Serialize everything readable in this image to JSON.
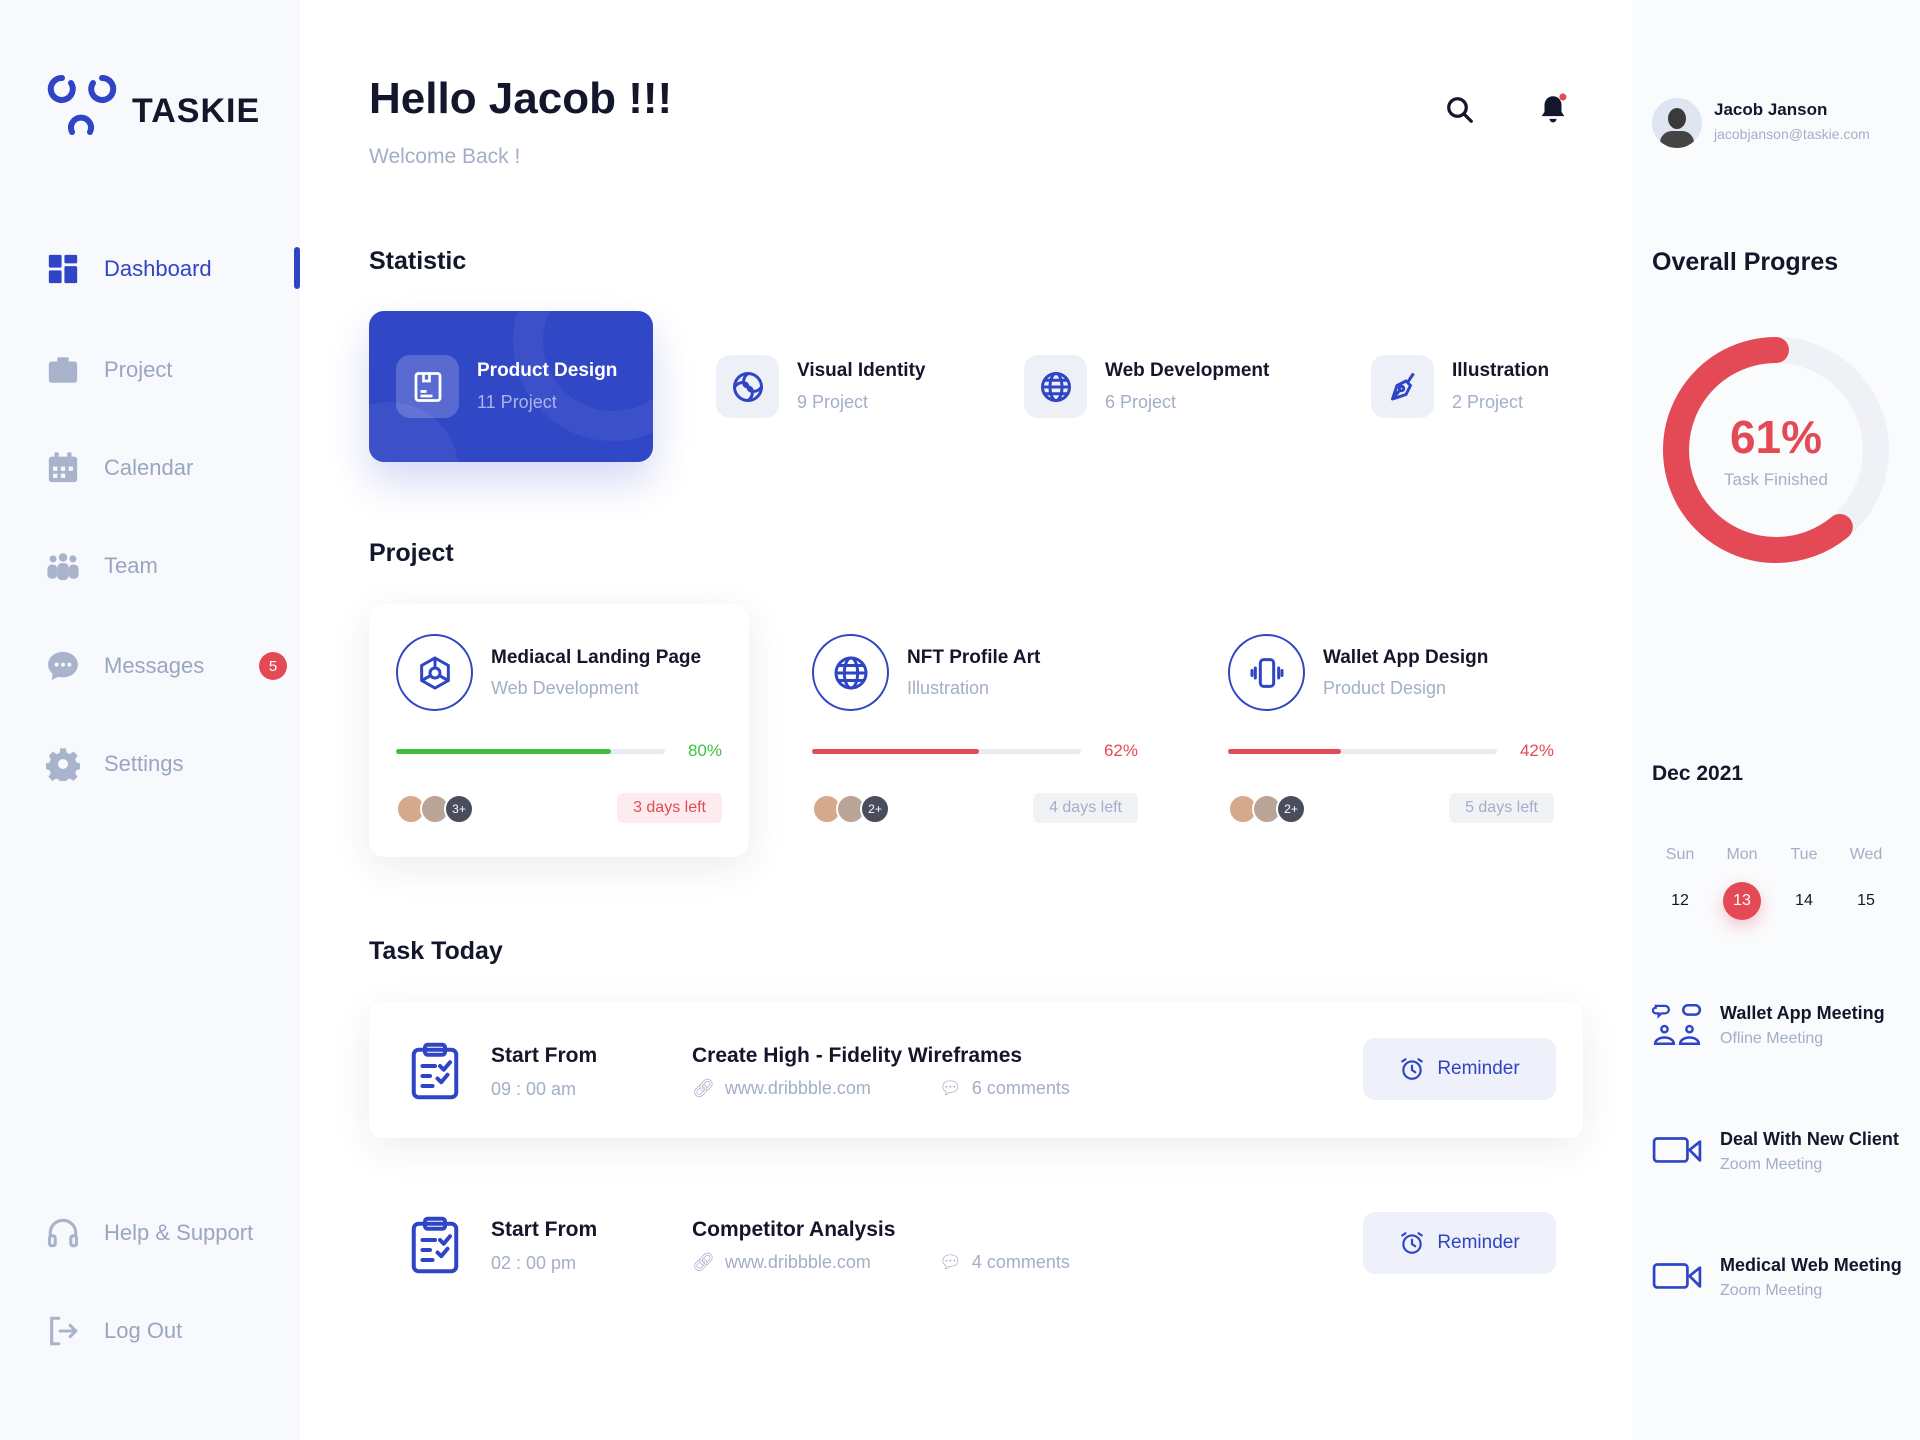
{
  "brand": {
    "name": "TASKIE"
  },
  "colors": {
    "primary": "#2f45c5",
    "danger": "#e34a55",
    "success": "#3ec03e"
  },
  "sidebar": {
    "items": [
      {
        "label": "Dashboard",
        "icon": "grid-icon",
        "active": true
      },
      {
        "label": "Project",
        "icon": "briefcase-icon"
      },
      {
        "label": "Calendar",
        "icon": "calendar-icon"
      },
      {
        "label": "Team",
        "icon": "team-icon"
      },
      {
        "label": "Messages",
        "icon": "chat-icon",
        "badge": "5"
      },
      {
        "label": "Settings",
        "icon": "gear-icon"
      }
    ],
    "bottom": [
      {
        "label": "Help & Support",
        "icon": "headset-icon"
      },
      {
        "label": "Log Out",
        "icon": "logout-icon"
      }
    ]
  },
  "header": {
    "title": "Hello Jacob !!!",
    "subtitle": "Welcome Back !"
  },
  "user": {
    "name": "Jacob Janson",
    "email": "jacobjanson@taskie.com"
  },
  "statistic": {
    "title": "Statistic",
    "items": [
      {
        "title": "Product Design",
        "count": "11 Project",
        "icon": "box-icon"
      },
      {
        "title": "Visual Identity",
        "count": "9 Project",
        "icon": "spiral-icon"
      },
      {
        "title": "Web Development",
        "count": "6 Project",
        "icon": "globe-icon"
      },
      {
        "title": "Illustration",
        "count": "2 Project",
        "icon": "pen-tool-icon"
      }
    ]
  },
  "projects": {
    "title": "Project",
    "items": [
      {
        "title": "Mediacal Landing Page",
        "category": "Web Development",
        "progress": 80,
        "progress_label": "80%",
        "color": "#3ec03e",
        "extra_members": "3+",
        "days_left": "3 days left",
        "urgent": true
      },
      {
        "title": "NFT Profile Art",
        "category": "Illustration",
        "progress": 62,
        "progress_label": "62%",
        "color": "#e34a55",
        "extra_members": "2+",
        "days_left": "4 days left"
      },
      {
        "title": "Wallet App Design",
        "category": "Product Design",
        "progress": 42,
        "progress_label": "42%",
        "color": "#e34a55",
        "extra_members": "2+",
        "days_left": "5 days left"
      }
    ]
  },
  "tasks": {
    "title": "Task Today",
    "items": [
      {
        "start_label": "Start From",
        "time": "09 : 00 am",
        "title": "Create High - Fidelity Wireframes",
        "link": "www.dribbble.com",
        "comments": "6 comments",
        "button": "Reminder"
      },
      {
        "start_label": "Start From",
        "time": "02 : 00 pm",
        "title": "Competitor Analysis",
        "link": "www.dribbble.com",
        "comments": "4 comments",
        "button": "Reminder"
      }
    ]
  },
  "overall": {
    "title": "Overall Progres",
    "percent": 61,
    "percent_label": "61%",
    "caption": "Task Finished"
  },
  "calendar": {
    "month": "Dec 2021",
    "days": [
      {
        "d": "Sun",
        "n": "12"
      },
      {
        "d": "Mon",
        "n": "13",
        "selected": true
      },
      {
        "d": "Tue",
        "n": "14"
      },
      {
        "d": "Wed",
        "n": "15"
      }
    ]
  },
  "events": [
    {
      "title": "Wallet App Meeting",
      "type": "Ofline Meeting",
      "icon": "meeting-icon"
    },
    {
      "title": "Deal With New Client",
      "type": "Zoom Meeting",
      "icon": "video-icon"
    },
    {
      "title": "Medical Web Meeting",
      "type": "Zoom Meeting",
      "icon": "video-icon"
    }
  ]
}
